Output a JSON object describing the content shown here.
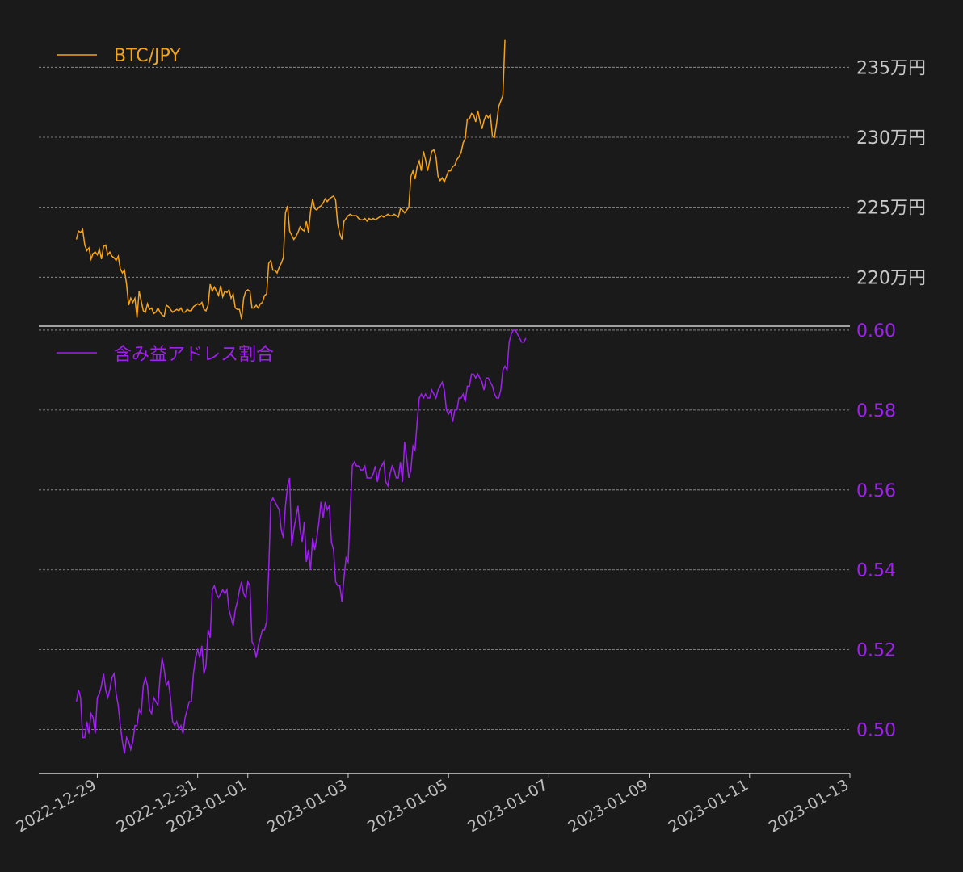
{
  "chart_data": [
    {
      "type": "line",
      "series": [
        {
          "name": "BTC/JPY",
          "color": "#f5a31a",
          "x_start": "2022-12-28T14:00",
          "step_hours": 1,
          "values": [
            2227000,
            2233000,
            2232000,
            2234000,
            2223000,
            2219000,
            2221000,
            2213000,
            2217000,
            2218000,
            2216000,
            2220000,
            2213000,
            2222000,
            2223000,
            2216000,
            2218000,
            2215000,
            2214000,
            2212000,
            2215000,
            2206000,
            2203000,
            2205000,
            2195000,
            2180000,
            2185000,
            2182000,
            2185000,
            2171000,
            2190000,
            2183000,
            2176000,
            2175000,
            2181000,
            2177000,
            2178000,
            2174000,
            2175000,
            2178000,
            2175000,
            2173000,
            2172000,
            2180000,
            2179000,
            2177000,
            2175000,
            2176000,
            2177000,
            2176000,
            2178000,
            2175000,
            2175000,
            2177000,
            2176000,
            2176000,
            2179000,
            2180000,
            2181000,
            2180000,
            2182000,
            2177000,
            2176000,
            2180000,
            2195000,
            2190000,
            2193000,
            2190000,
            2187000,
            2194000,
            2186000,
            2190000,
            2189000,
            2191000,
            2185000,
            2188000,
            2178000,
            2177000,
            2177000,
            2170000,
            2185000,
            2190000,
            2191000,
            2190000,
            2178000,
            2178000,
            2180000,
            2178000,
            2181000,
            2182000,
            2187000,
            2188000,
            2210000,
            2212000,
            2205000,
            2205000,
            2203000,
            2207000,
            2210000,
            2214000,
            2246000,
            2251000,
            2233000,
            2230000,
            2227000,
            2229000,
            2232000,
            2236000,
            2234000,
            2233000,
            2240000,
            2232000,
            2247000,
            2256000,
            2249000,
            2248000,
            2250000,
            2251000,
            2253000,
            2256000,
            2254000,
            2256000,
            2257000,
            2258000,
            2255000,
            2238000,
            2231000,
            2227000,
            2240000,
            2242000,
            2244000,
            2245000,
            2244000,
            2244000,
            2244000,
            2242000,
            2241000,
            2241000,
            2242000,
            2240000,
            2242000,
            2241000,
            2242000,
            2241000,
            2242000,
            2243000,
            2244000,
            2243000,
            2244000,
            2245000,
            2244000,
            2244000,
            2245000,
            2244000,
            2243000,
            2249000,
            2248000,
            2246000,
            2248000,
            2250000,
            2272000,
            2276000,
            2270000,
            2279000,
            2283000,
            2276000,
            2290000,
            2284000,
            2276000,
            2283000,
            2290000,
            2291000,
            2286000,
            2272000,
            2269000,
            2271000,
            2268000,
            2272000,
            2276000,
            2276000,
            2279000,
            2280000,
            2284000,
            2286000,
            2289000,
            2296000,
            2299000,
            2313000,
            2313000,
            2317000,
            2316000,
            2311000,
            2319000,
            2312000,
            2306000,
            2312000,
            2316000,
            2314000,
            2316000,
            2301000,
            2300000,
            2310000,
            2322000,
            2326000,
            2330000,
            2370000
          ]
        }
      ],
      "ylim": [
        2165000,
        2375000
      ],
      "yticks": [
        2200000,
        2250000,
        2300000,
        2350000
      ],
      "ytick_labels": [
        "220万円",
        "225万円",
        "230万円",
        "235万円"
      ],
      "grid": "horizontal-dashed",
      "legend": "top-left"
    },
    {
      "type": "line",
      "series": [
        {
          "name": "含み益アドレス割合",
          "color": "#a020f0",
          "x_start": "2022-12-28T14:00",
          "step_hours": 1,
          "values": [
            0.507,
            0.51,
            0.508,
            0.498,
            0.498,
            0.502,
            0.499,
            0.504,
            0.503,
            0.499,
            0.508,
            0.509,
            0.511,
            0.514,
            0.51,
            0.508,
            0.51,
            0.513,
            0.514,
            0.509,
            0.506,
            0.501,
            0.497,
            0.494,
            0.498,
            0.497,
            0.495,
            0.497,
            0.501,
            0.501,
            0.505,
            0.504,
            0.511,
            0.513,
            0.511,
            0.505,
            0.504,
            0.508,
            0.507,
            0.506,
            0.513,
            0.518,
            0.515,
            0.511,
            0.512,
            0.508,
            0.502,
            0.501,
            0.502,
            0.5,
            0.501,
            0.499,
            0.503,
            0.505,
            0.507,
            0.507,
            0.514,
            0.518,
            0.52,
            0.518,
            0.521,
            0.514,
            0.516,
            0.525,
            0.523,
            0.535,
            0.536,
            0.534,
            0.533,
            0.534,
            0.535,
            0.534,
            0.535,
            0.53,
            0.528,
            0.526,
            0.53,
            0.532,
            0.535,
            0.537,
            0.534,
            0.533,
            0.537,
            0.536,
            0.522,
            0.521,
            0.518,
            0.521,
            0.523,
            0.525,
            0.525,
            0.527,
            0.54,
            0.557,
            0.558,
            0.557,
            0.556,
            0.555,
            0.55,
            0.548,
            0.556,
            0.561,
            0.563,
            0.546,
            0.55,
            0.553,
            0.556,
            0.55,
            0.547,
            0.552,
            0.542,
            0.545,
            0.54,
            0.548,
            0.545,
            0.548,
            0.552,
            0.557,
            0.553,
            0.557,
            0.555,
            0.556,
            0.547,
            0.545,
            0.537,
            0.536,
            0.536,
            0.532,
            0.538,
            0.543,
            0.542,
            0.555,
            0.566,
            0.567,
            0.566,
            0.566,
            0.565,
            0.565,
            0.566,
            0.563,
            0.563,
            0.563,
            0.564,
            0.566,
            0.562,
            0.565,
            0.566,
            0.567,
            0.562,
            0.561,
            0.564,
            0.566,
            0.565,
            0.563,
            0.563,
            0.567,
            0.562,
            0.572,
            0.568,
            0.563,
            0.565,
            0.571,
            0.57,
            0.577,
            0.583,
            0.584,
            0.583,
            0.584,
            0.583,
            0.583,
            0.585,
            0.584,
            0.583,
            0.585,
            0.586,
            0.587,
            0.585,
            0.58,
            0.579,
            0.58,
            0.577,
            0.58,
            0.58,
            0.583,
            0.583,
            0.584,
            0.582,
            0.586,
            0.586,
            0.589,
            0.589,
            0.588,
            0.589,
            0.588,
            0.587,
            0.585,
            0.588,
            0.588,
            0.587,
            0.586,
            0.584,
            0.583,
            0.583,
            0.585,
            0.59,
            0.591,
            0.59,
            0.597,
            0.599,
            0.6,
            0.6,
            0.599,
            0.598,
            0.597,
            0.597,
            0.598
          ]
        }
      ],
      "ylim": [
        0.489,
        0.601
      ],
      "yticks": [
        0.5,
        0.52,
        0.54,
        0.56,
        0.58,
        0.6
      ],
      "ytick_labels": [
        "0.50",
        "0.52",
        "0.54",
        "0.56",
        "0.58",
        "0.60"
      ],
      "grid": "horizontal-dashed",
      "legend": "top-left"
    }
  ],
  "x_axis": {
    "type": "date",
    "xlim": [
      "2022-12-27T20:00",
      "2023-01-13T00:00"
    ],
    "ticks": [
      "2022-12-29",
      "2022-12-31",
      "2023-01-01",
      "2023-01-03",
      "2023-01-05",
      "2023-01-07",
      "2023-01-09",
      "2023-01-11",
      "2023-01-13"
    ],
    "tick_color": "#bdbdbd"
  },
  "background": "#1a1a1a",
  "grid_color": "#9a9a9a",
  "axis_color": "#d0d0d0"
}
